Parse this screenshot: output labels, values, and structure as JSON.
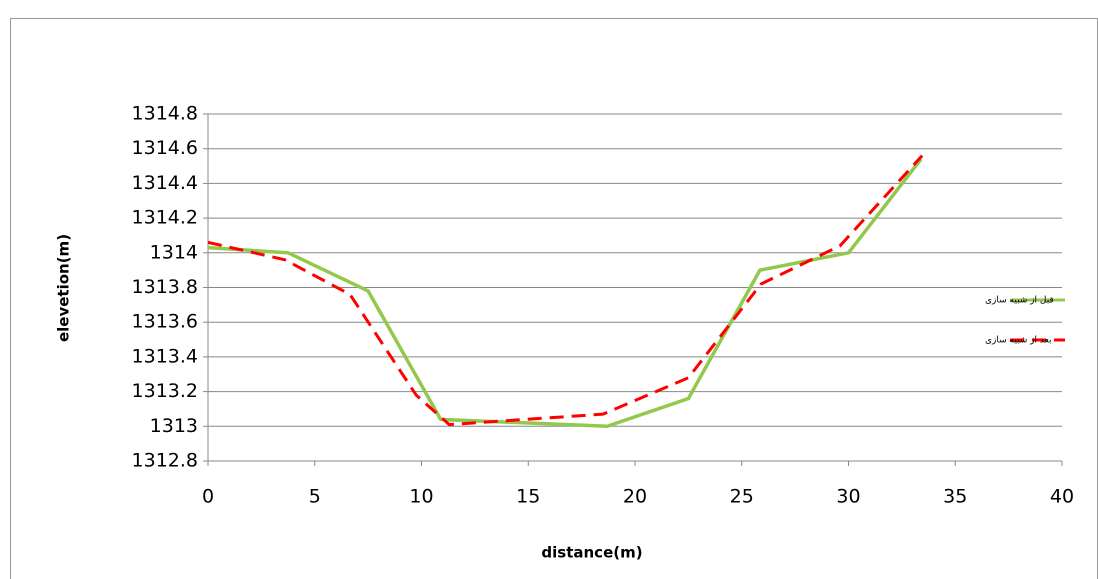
{
  "chart_data": {
    "type": "line",
    "xlabel": "distance(m)",
    "ylabel": "elevetion(m)",
    "xlim": [
      0,
      40
    ],
    "xticks": [
      0,
      5,
      10,
      15,
      20,
      25,
      30,
      35,
      40
    ],
    "ylim": [
      1312.8,
      1314.8
    ],
    "yticks": [
      1312.8,
      1313,
      1313.2,
      1313.4,
      1313.6,
      1313.8,
      1314,
      1314.2,
      1314.4,
      1314.6,
      1314.8
    ],
    "grid": true,
    "legend": "right",
    "series": [
      {
        "name": "قبل از شبیه سازی",
        "color": "#92c84c",
        "style": "solid",
        "x": [
          0,
          3.75,
          7.5,
          10.9,
          18.7,
          22.5,
          25.85,
          30,
          33.4
        ],
        "values": [
          1314.03,
          1314.0,
          1313.78,
          1313.04,
          1313.0,
          1313.16,
          1313.9,
          1314.0,
          1314.54
        ]
      },
      {
        "name": "بعد از شبیه سازی",
        "color": "#ff0000",
        "style": "dashed",
        "x": [
          0,
          3.6,
          6.65,
          9.75,
          11.3,
          18.5,
          22.5,
          25.9,
          29.6,
          33.45
        ],
        "values": [
          1314.06,
          1313.96,
          1313.76,
          1313.18,
          1313.01,
          1313.07,
          1313.28,
          1313.82,
          1314.04,
          1314.56
        ]
      }
    ]
  }
}
